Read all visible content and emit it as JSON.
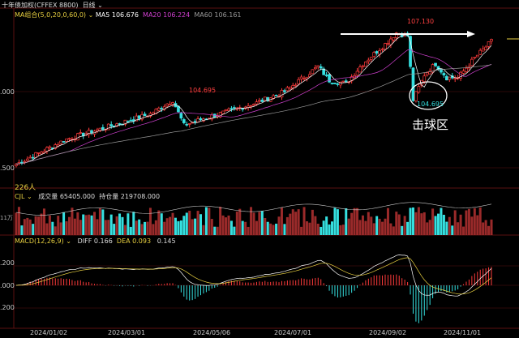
{
  "header": {
    "instrument": "十年债加权(CFFEX 8800)",
    "period": "日线"
  },
  "ma_legend": {
    "label": "MA组合(5,0,20,0,60,0)",
    "ma5": "MA5 106.676",
    "ma20": "MA20 106.224",
    "ma60": "MA60 106.161"
  },
  "volume_legend": {
    "label": "CJL",
    "volume": "成交量 65405.000",
    "open_interest": "持仓量 219708.000",
    "axis_label": "11万"
  },
  "macd_legend": {
    "label": "MACD(12,26,9)",
    "diff": "DIFF 0.166",
    "dea": "DEA 0.093",
    "macd": "0.145"
  },
  "annotations": {
    "high": "107.130",
    "low_left": "104.695",
    "low_right": "104.695",
    "start_label": "226人",
    "zone": "击球区"
  },
  "colors": {
    "up": "#ff3b3b",
    "down": "#35e0e0",
    "ma5": "#ffffff",
    "ma20": "#d040d0",
    "ma60": "#999999",
    "legend": "#e8d040",
    "grid": "#5a1010"
  },
  "chart_data": {
    "type": "candlestick",
    "price_tick_labels": [
      ".000",
      ".500"
    ],
    "macd_tick_labels": [
      ".200",
      ".000",
      ".200"
    ],
    "x_tick_labels": [
      "2024/01/02",
      "2024/03/01",
      "2024/05/06",
      "2024/07/01",
      "2024/09/02",
      "2024/11/01"
    ],
    "close_keypoints": [
      [
        0,
        102.4
      ],
      [
        8,
        102.8
      ],
      [
        18,
        103.3
      ],
      [
        28,
        103.6
      ],
      [
        38,
        103.9
      ],
      [
        48,
        104.2
      ],
      [
        56,
        104.69
      ],
      [
        60,
        103.8
      ],
      [
        66,
        104.0
      ],
      [
        76,
        104.3
      ],
      [
        86,
        104.6
      ],
      [
        96,
        105.0
      ],
      [
        104,
        105.6
      ],
      [
        108,
        105.9
      ],
      [
        112,
        105.4
      ],
      [
        118,
        105.3
      ],
      [
        124,
        106.0
      ],
      [
        132,
        106.7
      ],
      [
        136,
        107.1
      ],
      [
        140,
        107.0
      ],
      [
        142,
        104.7
      ],
      [
        146,
        105.6
      ],
      [
        150,
        106.0
      ],
      [
        154,
        105.5
      ],
      [
        158,
        105.5
      ],
      [
        164,
        106.2
      ],
      [
        170,
        106.8
      ]
    ]
  }
}
